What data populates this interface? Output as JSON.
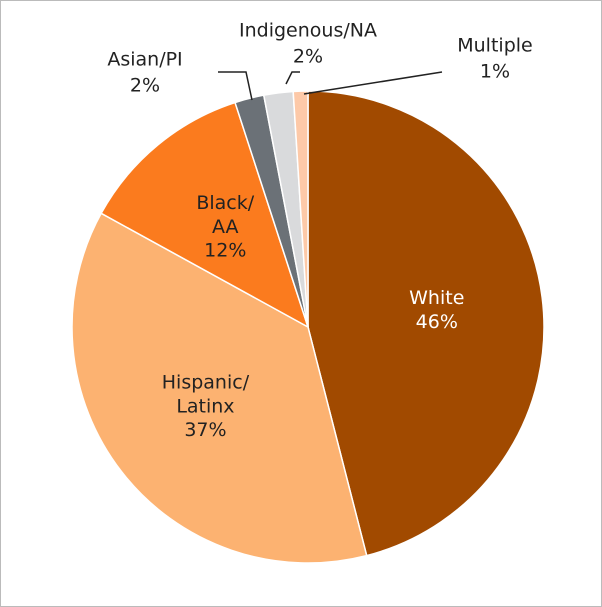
{
  "chart_data": {
    "type": "pie",
    "categories": [
      "White",
      "Hispanic/Latinx",
      "Black/AA",
      "Asian/PI",
      "Indigenous/NA",
      "Multiple"
    ],
    "values": [
      46,
      37,
      12,
      2,
      2,
      1
    ],
    "value_labels": [
      "46%",
      "37%",
      "12%",
      "2%",
      "2%",
      "1%"
    ],
    "colors": [
      "#a14a00",
      "#fcb271",
      "#fb7b1e",
      "#6b7177",
      "#d9dadc",
      "#fdc9a8"
    ]
  }
}
